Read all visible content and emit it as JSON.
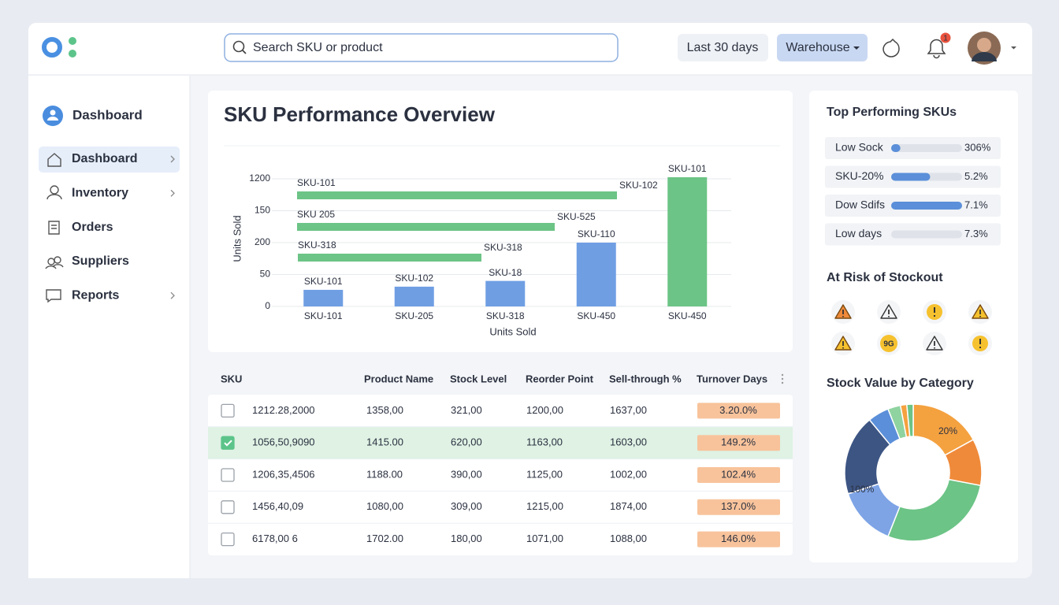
{
  "header": {
    "search_placeholder": "Search SKU or product",
    "date_range": "Last 30 days",
    "warehouse": "Warehouse",
    "notification_count": 1
  },
  "sidebar": {
    "user": "Dashboard",
    "items": [
      {
        "label": "Dashboard",
        "active": true,
        "chevron": true
      },
      {
        "label": "Inventory",
        "active": false,
        "chevron": true
      },
      {
        "label": "Orders",
        "active": false,
        "chevron": false
      },
      {
        "label": "Suppliers",
        "active": false,
        "chevron": false
      },
      {
        "label": "Reports",
        "active": false,
        "chevron": true
      }
    ]
  },
  "overview": {
    "title": "SKU Performance Overview"
  },
  "chart_data": [
    {
      "type": "bar",
      "x_label": "Units Sold",
      "y_label": "Units Sold",
      "categories": [
        "SKU-101",
        "SKU-205",
        "SKU-318",
        "SKU-450",
        "SKU-450"
      ],
      "values": [
        0.52,
        0.62,
        0.8,
        2.0,
        4.05
      ],
      "bar_labels": [
        "SKU-101",
        "SKU-102",
        "SKU-18",
        "SKU-110",
        "SKU-101"
      ],
      "colors": [
        "#6f9ee3",
        "#6f9ee3",
        "#6f9ee3",
        "#6f9ee3",
        "#6cc486"
      ],
      "ylim": [
        0,
        4.1
      ],
      "yticks": [
        0,
        {
          "value": 1,
          "label": "50"
        },
        {
          "value": 2,
          "label": "200"
        },
        {
          "value": 3,
          "label": "150"
        },
        {
          "value": 4,
          "label": "1200"
        }
      ],
      "grid": true,
      "bands": [
        {
          "label": "SKU-101",
          "end_label": "SKU-102"
        },
        {
          "label": "SKU 205",
          "end_label": "SKU-525"
        },
        {
          "label": "SKU-318",
          "end_label": "SKU-318"
        }
      ],
      "band_color": "#6cc486"
    },
    {
      "type": "pie",
      "title": "Stock Value by Category",
      "values": [
        17,
        11,
        28,
        14,
        19,
        5,
        3,
        1.5,
        1.5
      ],
      "colors": [
        "#f4a13f",
        "#ef8a3a",
        "#6cc486",
        "#7ea4e6",
        "#3d5583",
        "#5b8fd9",
        "#8fd3a0",
        "#f4a13f",
        "#6cc486"
      ],
      "annotations": [
        "20%",
        "100%"
      ]
    }
  ],
  "table": {
    "headers": [
      "SKU",
      "Product Name",
      "Stock Level",
      "Reorder Point",
      "Sell-through %",
      "Turnover Days"
    ],
    "rows": [
      {
        "checked": false,
        "cells": [
          "1212.28,2000",
          "1358,00",
          "321,00",
          "1200,00",
          "1637,00",
          "3.20.0%"
        ]
      },
      {
        "checked": true,
        "cells": [
          "1056,50,9090",
          "1415.00",
          "620,00",
          "1163,00",
          "1603,00",
          "149.2%"
        ]
      },
      {
        "checked": false,
        "cells": [
          "1206,35,4506",
          "1188.00",
          "390,00",
          "1125,00",
          "1002,00",
          "102.4%"
        ]
      },
      {
        "checked": false,
        "cells": [
          "1456,40,09",
          "1080,00",
          "309,00",
          "1215,00",
          "1874,00",
          "137.0%"
        ]
      },
      {
        "checked": false,
        "cells": [
          "6178,00 6",
          "1702.00",
          "180,00",
          "1071,00",
          "1088,00",
          "146.0%"
        ]
      }
    ]
  },
  "top_skus": {
    "title": "Top Performing SKUs",
    "items": [
      {
        "label": "Low Sock",
        "fill": 0.13,
        "percent": "306%",
        "percent_color": "#3cb86a"
      },
      {
        "label": "SKU-20%",
        "fill": 0.55,
        "percent": "5.2%",
        "percent_color": "#f08a3c"
      },
      {
        "label": "Dow Sdifs",
        "fill": 1.0,
        "percent": "7.1%",
        "percent_color": "#3cb86a"
      },
      {
        "label": "Low days",
        "fill": 0,
        "percent": "7.3%",
        "percent_color": "#3cb86a"
      }
    ]
  },
  "stockout": {
    "title": "At Risk of Stockout",
    "icon_text": "9G"
  }
}
